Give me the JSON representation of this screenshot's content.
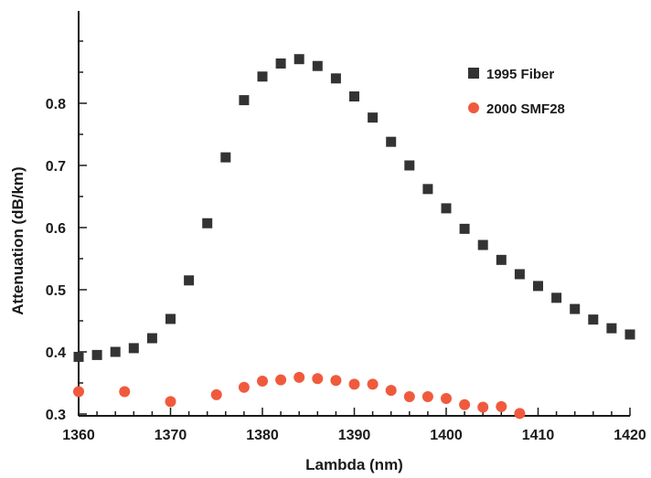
{
  "chart_data": {
    "type": "scatter",
    "xlabel": "Lambda (nm)",
    "ylabel": "Attenuation (dB/km)",
    "xlim": [
      1360,
      1420
    ],
    "ylim": [
      0.3,
      0.9
    ],
    "xticks": [
      1360,
      1370,
      1380,
      1390,
      1400,
      1410,
      1420
    ],
    "yticks": [
      0.3,
      0.4,
      0.5,
      0.6,
      0.7,
      0.8
    ],
    "legend_position": "top-right",
    "series": [
      {
        "name": "1995 Fiber",
        "marker": "square",
        "color": "#333333",
        "x": [
          1360,
          1362,
          1364,
          1366,
          1368,
          1370,
          1372,
          1374,
          1376,
          1378,
          1380,
          1382,
          1384,
          1386,
          1388,
          1390,
          1392,
          1394,
          1396,
          1398,
          1400,
          1402,
          1404,
          1406,
          1408,
          1410,
          1412,
          1414,
          1416,
          1418,
          1420
        ],
        "y": [
          0.392,
          0.395,
          0.4,
          0.406,
          0.422,
          0.453,
          0.515,
          0.607,
          0.713,
          0.805,
          0.843,
          0.864,
          0.871,
          0.86,
          0.84,
          0.811,
          0.777,
          0.738,
          0.7,
          0.662,
          0.631,
          0.598,
          0.572,
          0.548,
          0.525,
          0.506,
          0.487,
          0.469,
          0.452,
          0.438,
          0.428
        ]
      },
      {
        "name": "2000 SMF28",
        "marker": "circle",
        "color": "#f05a3c",
        "x": [
          1360,
          1365,
          1370,
          1375,
          1378,
          1380,
          1382,
          1384,
          1386,
          1388,
          1390,
          1392,
          1394,
          1396,
          1398,
          1400,
          1402,
          1404,
          1406,
          1408
        ],
        "y": [
          0.336,
          0.336,
          0.32,
          0.331,
          0.343,
          0.353,
          0.355,
          0.359,
          0.357,
          0.354,
          0.348,
          0.348,
          0.338,
          0.328,
          0.328,
          0.325,
          0.315,
          0.311,
          0.312,
          0.301
        ]
      }
    ]
  }
}
